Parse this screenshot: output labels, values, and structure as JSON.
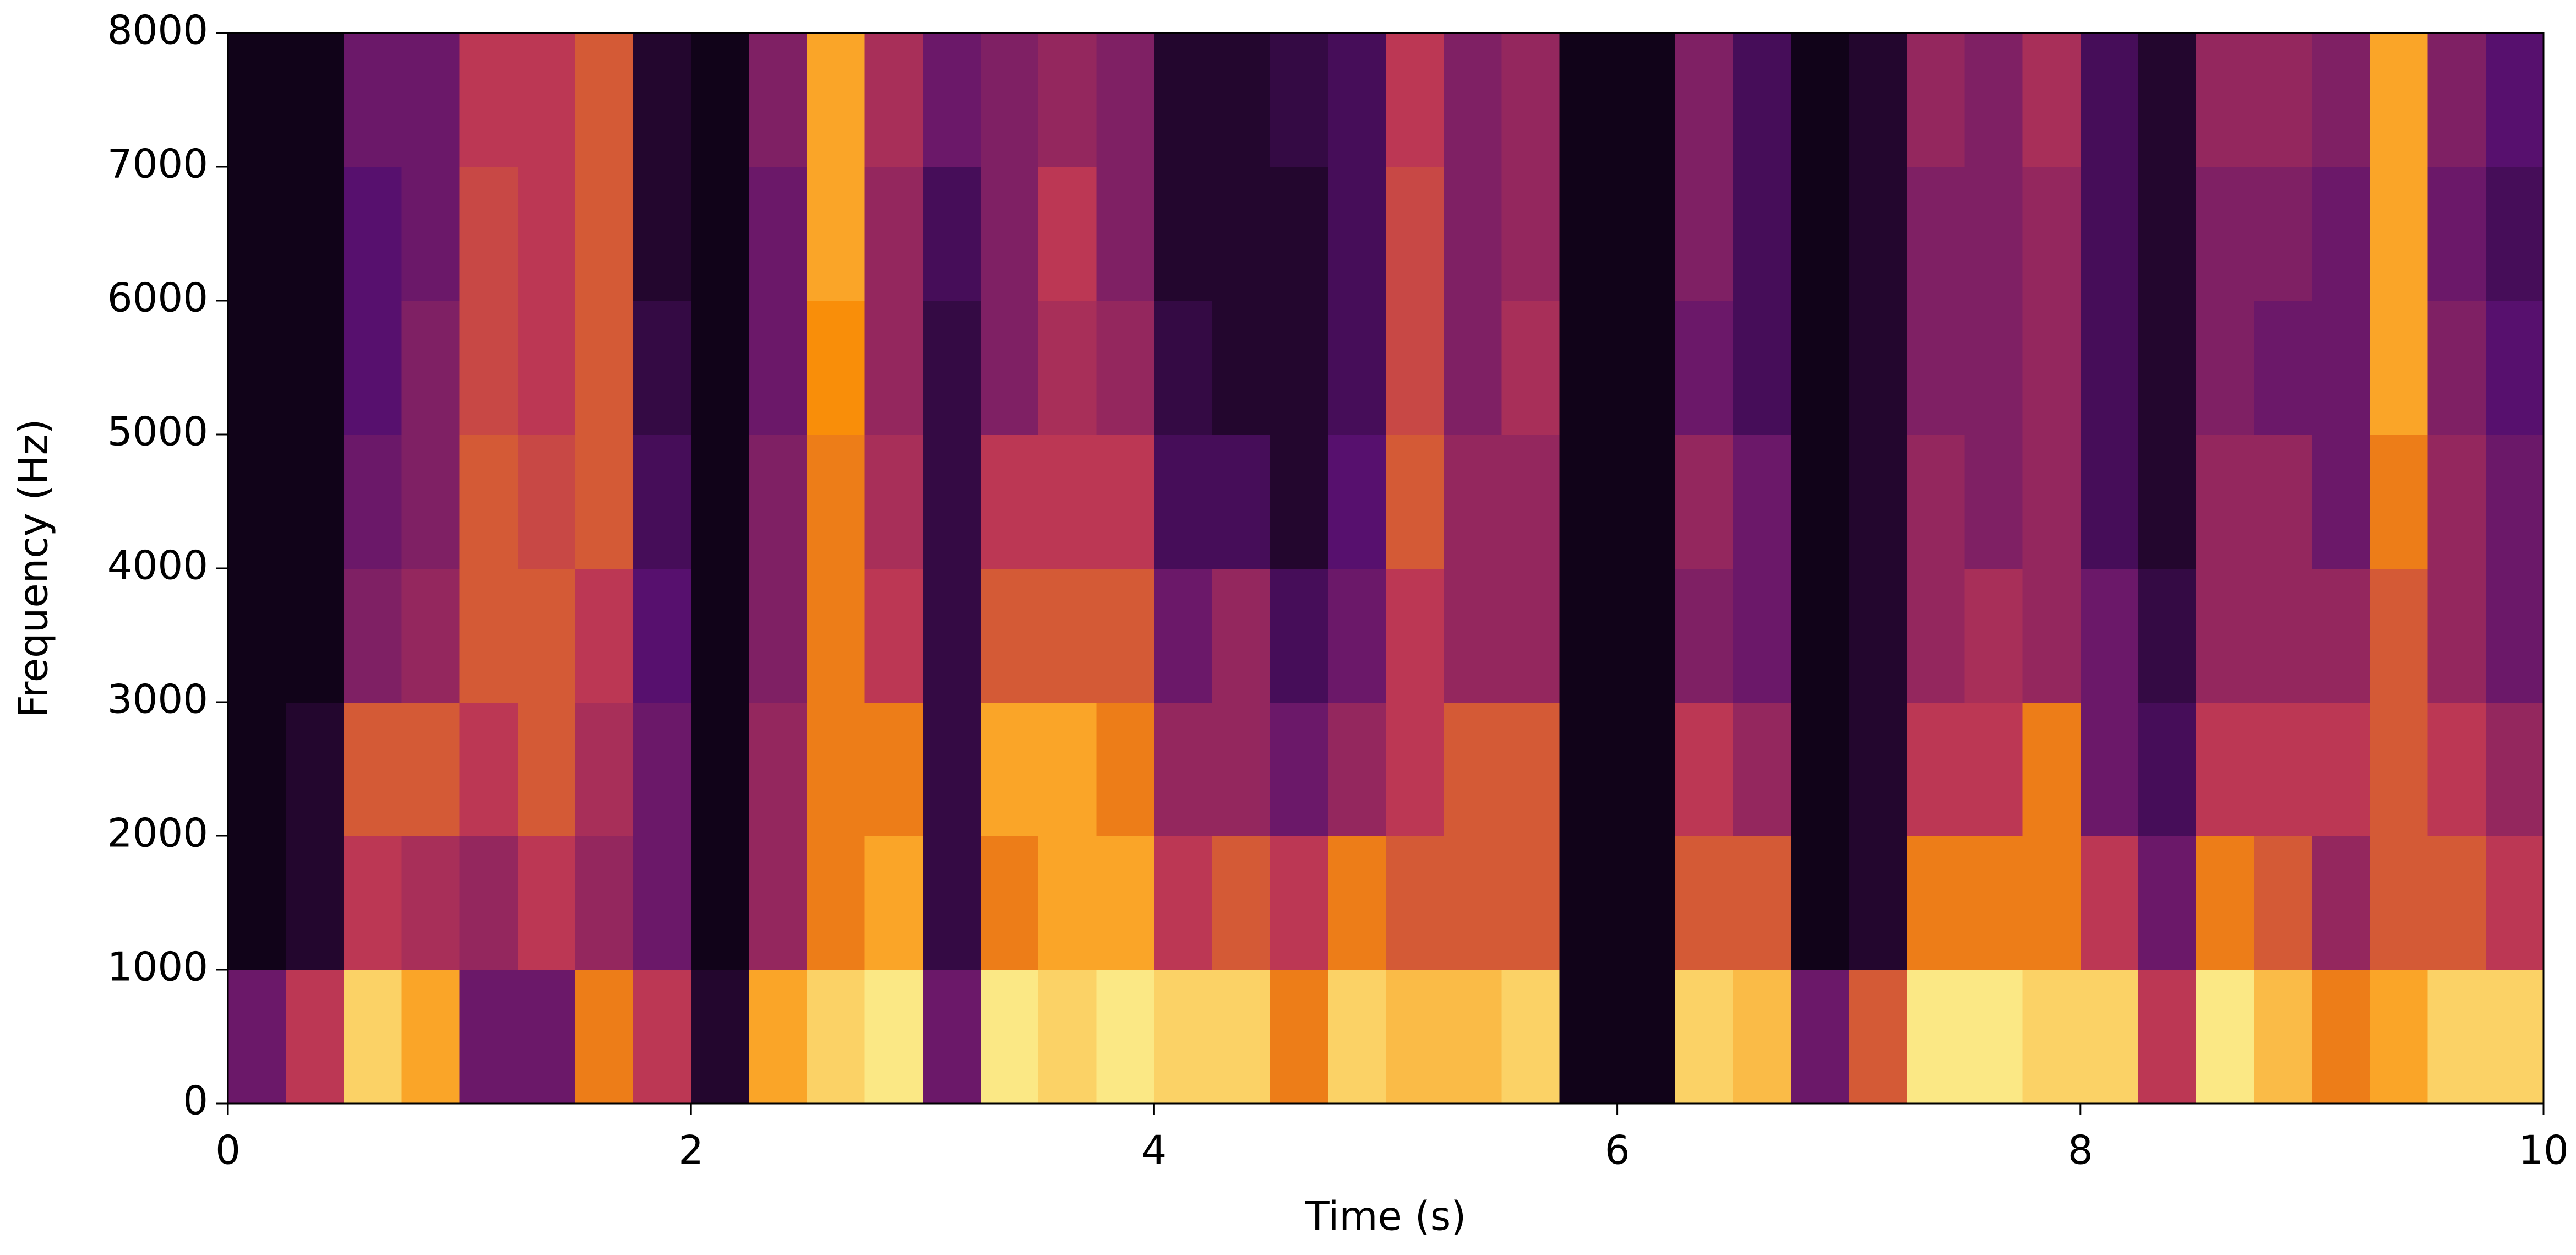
{
  "chart_data": {
    "type": "heatmap",
    "colormap": "inferno",
    "xlabel": "Time (s)",
    "ylabel": "Frequency (Hz)",
    "xlim": [
      0,
      10
    ],
    "ylim": [
      0,
      8000
    ],
    "xticks": [
      0,
      2,
      4,
      6,
      8,
      10
    ],
    "yticks": [
      0,
      1000,
      2000,
      3000,
      4000,
      5000,
      6000,
      7000,
      8000
    ],
    "xbins": [
      0,
      0.25,
      0.5,
      0.75,
      1,
      1.25,
      1.5,
      1.75,
      2,
      2.25,
      2.5,
      2.75,
      3,
      3.25,
      3.5,
      3.75,
      4,
      4.25,
      4.5,
      4.75,
      5,
      5.25,
      5.5,
      5.75,
      6,
      6.25,
      6.5,
      6.75,
      7,
      7.25,
      7.5,
      7.75,
      8,
      8.25,
      8.5,
      8.75,
      9,
      9.25,
      9.5,
      9.75,
      10
    ],
    "ybins": [
      0,
      1000,
      2000,
      3000,
      4000,
      5000,
      6000,
      7000,
      8000
    ],
    "z": [
      [
        0.3,
        0.05,
        0.05,
        0.05,
        0.05,
        0.05,
        0.05,
        0.05
      ],
      [
        0.5,
        0.1,
        0.1,
        0.05,
        0.05,
        0.05,
        0.05,
        0.05
      ],
      [
        0.9,
        0.5,
        0.6,
        0.35,
        0.3,
        0.25,
        0.25,
        0.3
      ],
      [
        0.8,
        0.45,
        0.6,
        0.4,
        0.35,
        0.35,
        0.3,
        0.3
      ],
      [
        0.3,
        0.4,
        0.5,
        0.6,
        0.6,
        0.55,
        0.55,
        0.5
      ],
      [
        0.3,
        0.5,
        0.6,
        0.6,
        0.55,
        0.5,
        0.5,
        0.5
      ],
      [
        0.7,
        0.4,
        0.45,
        0.5,
        0.6,
        0.6,
        0.6,
        0.6
      ],
      [
        0.5,
        0.3,
        0.3,
        0.25,
        0.2,
        0.15,
        0.1,
        0.1
      ],
      [
        0.1,
        0.05,
        0.05,
        0.05,
        0.05,
        0.05,
        0.05,
        0.05
      ],
      [
        0.8,
        0.4,
        0.4,
        0.35,
        0.35,
        0.3,
        0.3,
        0.35
      ],
      [
        0.9,
        0.7,
        0.7,
        0.7,
        0.7,
        0.75,
        0.8,
        0.8
      ],
      [
        0.95,
        0.8,
        0.7,
        0.5,
        0.45,
        0.4,
        0.4,
        0.45
      ],
      [
        0.3,
        0.15,
        0.15,
        0.15,
        0.15,
        0.15,
        0.2,
        0.3
      ],
      [
        0.95,
        0.7,
        0.8,
        0.6,
        0.5,
        0.35,
        0.35,
        0.35
      ],
      [
        0.9,
        0.8,
        0.8,
        0.6,
        0.5,
        0.45,
        0.5,
        0.4
      ],
      [
        0.95,
        0.8,
        0.7,
        0.6,
        0.5,
        0.4,
        0.35,
        0.35
      ],
      [
        0.9,
        0.5,
        0.4,
        0.3,
        0.2,
        0.15,
        0.1,
        0.1
      ],
      [
        0.9,
        0.6,
        0.4,
        0.4,
        0.2,
        0.1,
        0.1,
        0.1
      ],
      [
        0.7,
        0.5,
        0.3,
        0.2,
        0.1,
        0.1,
        0.1,
        0.15
      ],
      [
        0.9,
        0.7,
        0.4,
        0.3,
        0.25,
        0.2,
        0.2,
        0.2
      ],
      [
        0.85,
        0.6,
        0.5,
        0.5,
        0.6,
        0.55,
        0.55,
        0.5
      ],
      [
        0.85,
        0.6,
        0.6,
        0.4,
        0.4,
        0.35,
        0.35,
        0.35
      ],
      [
        0.9,
        0.6,
        0.6,
        0.4,
        0.4,
        0.45,
        0.4,
        0.4
      ],
      [
        0.05,
        0.05,
        0.05,
        0.05,
        0.05,
        0.05,
        0.05,
        0.05
      ],
      [
        0.05,
        0.05,
        0.05,
        0.05,
        0.05,
        0.05,
        0.05,
        0.05
      ],
      [
        0.9,
        0.6,
        0.5,
        0.35,
        0.4,
        0.3,
        0.35,
        0.35
      ],
      [
        0.85,
        0.6,
        0.4,
        0.3,
        0.3,
        0.2,
        0.2,
        0.2
      ],
      [
        0.3,
        0.05,
        0.05,
        0.05,
        0.05,
        0.05,
        0.05,
        0.05
      ],
      [
        0.6,
        0.1,
        0.1,
        0.1,
        0.1,
        0.1,
        0.1,
        0.1
      ],
      [
        0.95,
        0.7,
        0.5,
        0.4,
        0.4,
        0.35,
        0.35,
        0.4
      ],
      [
        0.95,
        0.7,
        0.5,
        0.45,
        0.35,
        0.35,
        0.35,
        0.35
      ],
      [
        0.9,
        0.7,
        0.7,
        0.4,
        0.4,
        0.4,
        0.4,
        0.45
      ],
      [
        0.9,
        0.5,
        0.3,
        0.3,
        0.2,
        0.2,
        0.2,
        0.2
      ],
      [
        0.5,
        0.3,
        0.2,
        0.15,
        0.1,
        0.1,
        0.1,
        0.1
      ],
      [
        0.95,
        0.7,
        0.5,
        0.4,
        0.4,
        0.35,
        0.35,
        0.4
      ],
      [
        0.85,
        0.6,
        0.5,
        0.4,
        0.4,
        0.3,
        0.35,
        0.4
      ],
      [
        0.7,
        0.4,
        0.5,
        0.4,
        0.3,
        0.3,
        0.3,
        0.35
      ],
      [
        0.8,
        0.6,
        0.6,
        0.6,
        0.7,
        0.8,
        0.8,
        0.8
      ],
      [
        0.9,
        0.6,
        0.5,
        0.4,
        0.4,
        0.35,
        0.3,
        0.35
      ],
      [
        0.9,
        0.5,
        0.4,
        0.3,
        0.3,
        0.25,
        0.2,
        0.25
      ]
    ]
  }
}
